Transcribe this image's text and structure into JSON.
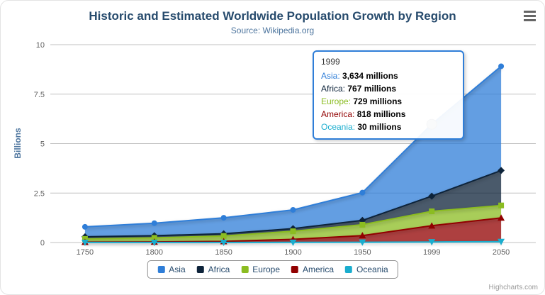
{
  "chart": {
    "credits": "Highcharts.com"
  },
  "chart_data": {
    "type": "area",
    "stacking": "normal",
    "title": "Historic and Estimated Worldwide Population Growth by Region",
    "subtitle": "Source: Wikipedia.org",
    "xlabel": "",
    "ylabel": "Billions",
    "unit": "millions",
    "grid": true,
    "legend_position": "bottom",
    "ylim": [
      0,
      10
    ],
    "yticks": [
      0,
      2.5,
      5,
      7.5,
      10
    ],
    "categories": [
      "1750",
      "1800",
      "1850",
      "1900",
      "1950",
      "1999",
      "2050"
    ],
    "series": [
      {
        "name": "Asia",
        "color": "#2f7ed8",
        "marker": "circle",
        "values": [
          502,
          635,
          809,
          947,
          1402,
          3634,
          5268
        ]
      },
      {
        "name": "Africa",
        "color": "#0d233a",
        "marker": "diamond",
        "values": [
          106,
          107,
          111,
          133,
          221,
          767,
          1766
        ]
      },
      {
        "name": "Europe",
        "color": "#8bbc21",
        "marker": "square",
        "values": [
          163,
          203,
          276,
          408,
          547,
          729,
          628
        ]
      },
      {
        "name": "America",
        "color": "#910000",
        "marker": "triangle",
        "values": [
          18,
          31,
          54,
          156,
          339,
          818,
          1201
        ]
      },
      {
        "name": "Oceania",
        "color": "#1aadce",
        "marker": "triangle-down",
        "values": [
          2,
          2,
          2,
          6,
          13,
          30,
          46
        ]
      }
    ]
  },
  "tooltip": {
    "title": "1999",
    "hover_point": {
      "category": "1999",
      "series": "Asia"
    },
    "rows": [
      {
        "name": "Asia",
        "value": "3,634",
        "suffix": "millions",
        "color": "#2f7ed8"
      },
      {
        "name": "Africa",
        "value": "767",
        "suffix": "millions",
        "color": "#0d233a"
      },
      {
        "name": "Europe",
        "value": "729",
        "suffix": "millions",
        "color": "#8bbc21"
      },
      {
        "name": "America",
        "value": "818",
        "suffix": "millions",
        "color": "#910000"
      },
      {
        "name": "Oceania",
        "value": "30",
        "suffix": "millions",
        "color": "#1aadce"
      }
    ]
  }
}
